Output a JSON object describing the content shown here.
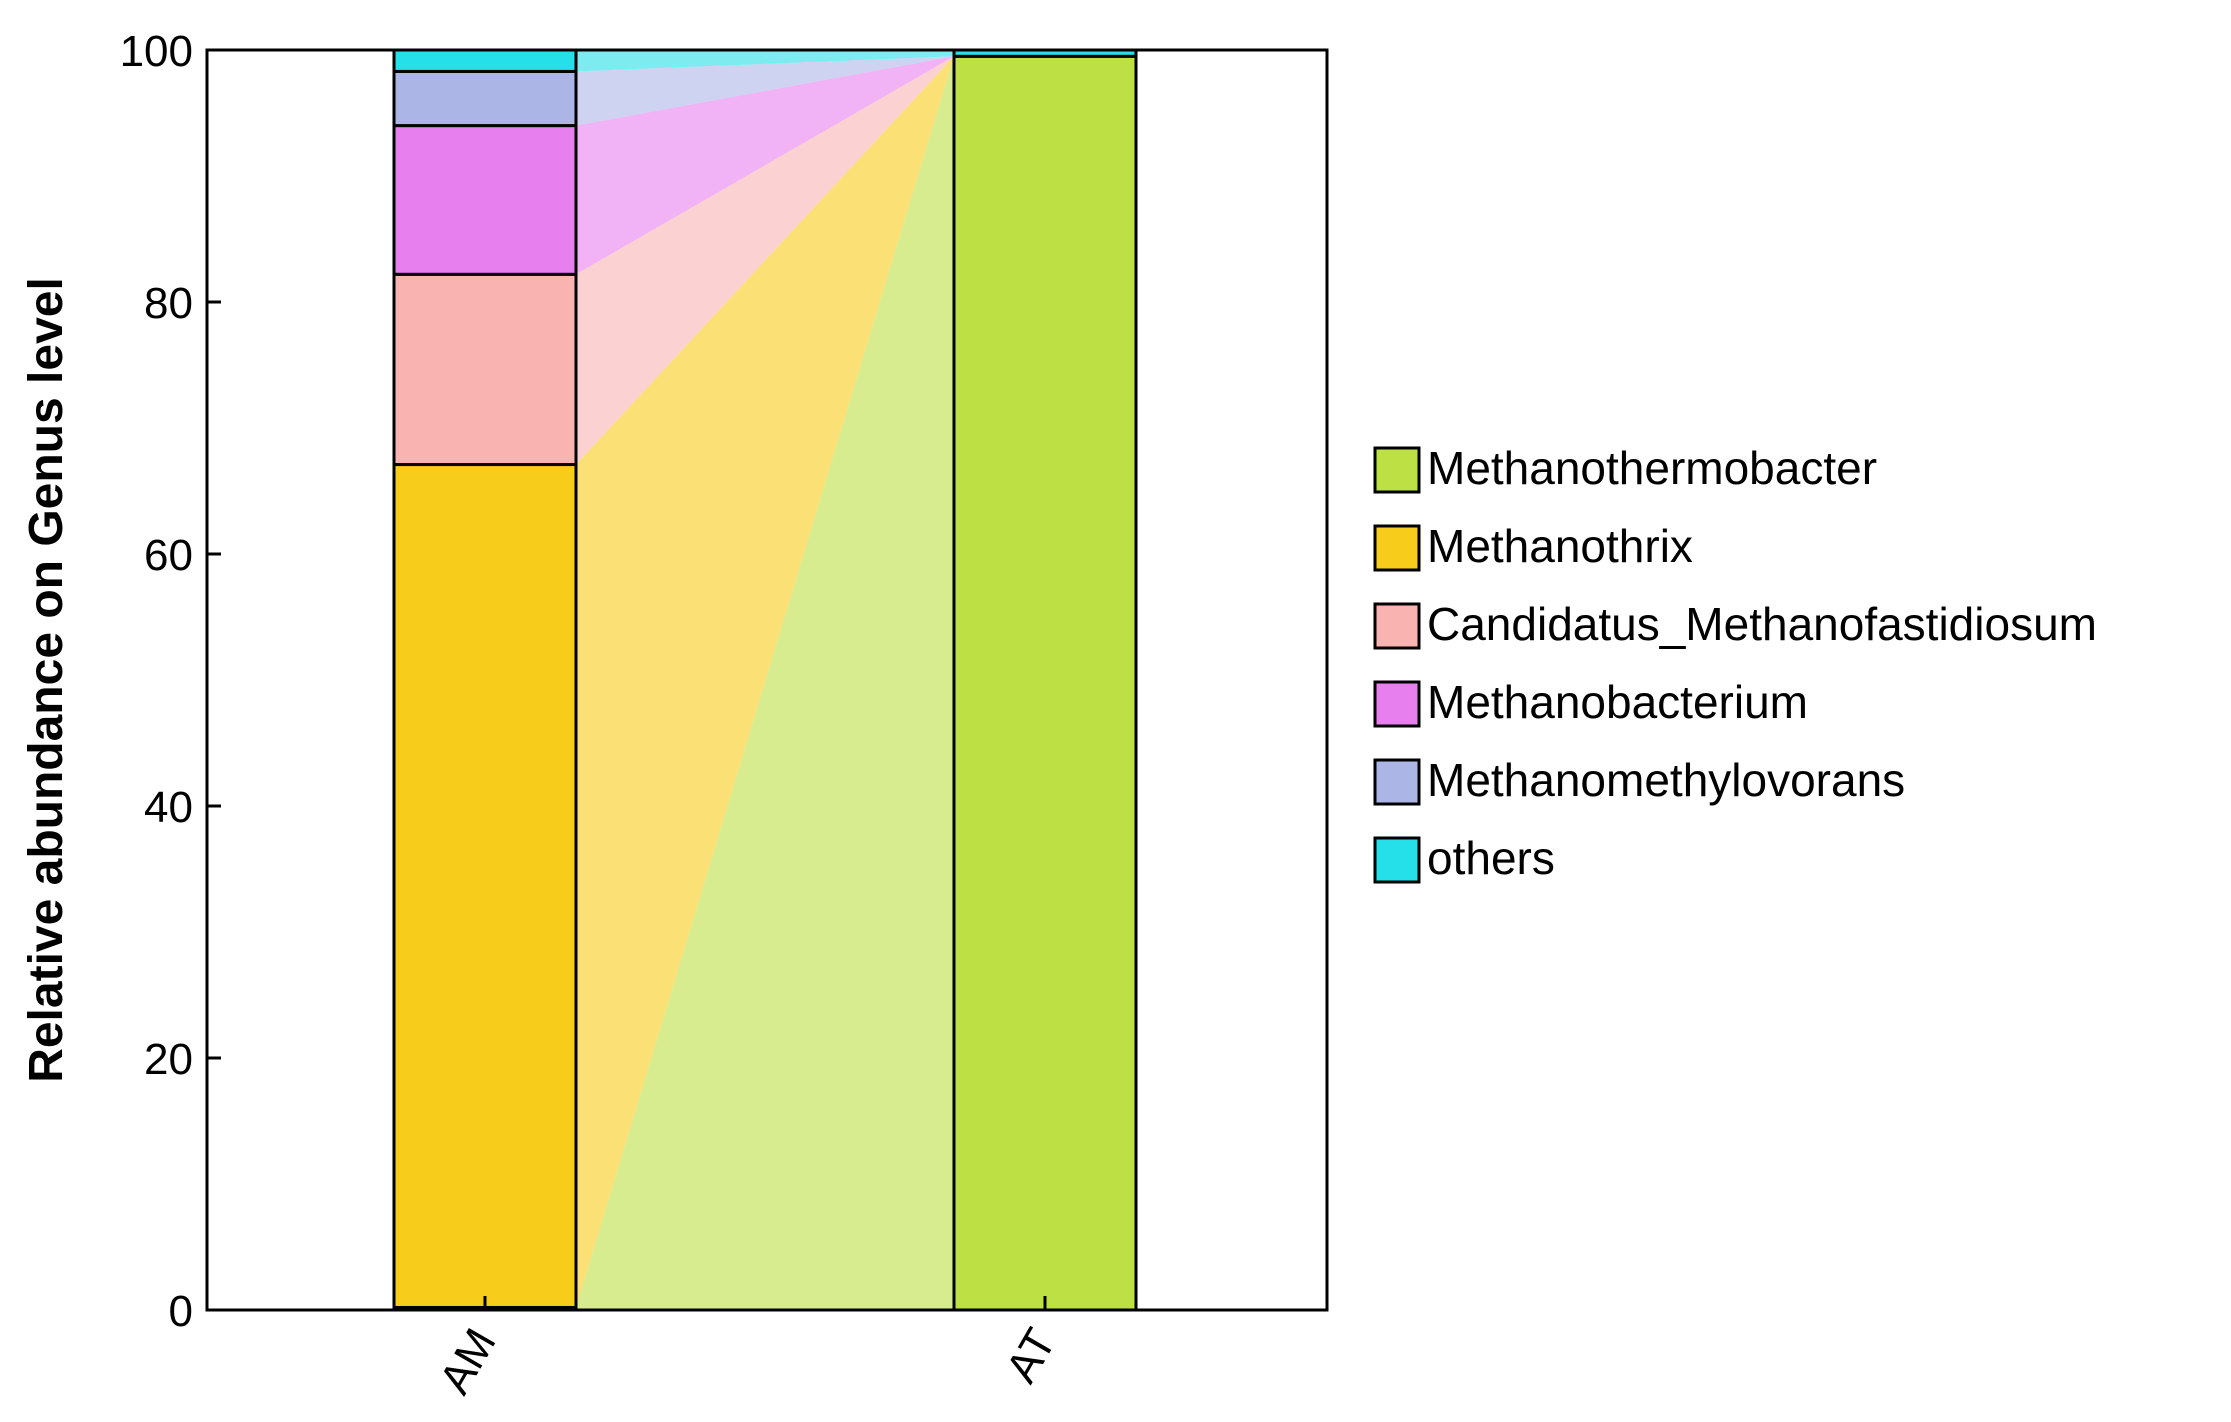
{
  "chart_data": {
    "type": "bar",
    "stacked": true,
    "flow_bands": true,
    "ylabel": "Relative abundance on Genus level",
    "ylim": [
      0,
      100
    ],
    "yticks": [
      0,
      20,
      40,
      60,
      80,
      100
    ],
    "categories": [
      "AM",
      "AT"
    ],
    "series": [
      {
        "name": "Methanothermobacter",
        "color": "#bde045",
        "values": [
          0.2,
          99.5
        ]
      },
      {
        "name": "Methanothrix",
        "color": "#f8cc1a",
        "values": [
          66.9,
          0.0
        ]
      },
      {
        "name": "Candidatus_Methanofastidiosum",
        "color": "#f9b4b2",
        "values": [
          15.1,
          0.0
        ]
      },
      {
        "name": "Methanobacterium",
        "color": "#e780ee",
        "values": [
          11.8,
          0.0
        ]
      },
      {
        "name": "Methanomethylovorans",
        "color": "#acb6e6",
        "values": [
          4.3,
          0.0
        ]
      },
      {
        "name": "others",
        "color": "#25e0e8",
        "values": [
          1.7,
          0.5
        ]
      }
    ],
    "legend_position": "right",
    "grid": false
  }
}
